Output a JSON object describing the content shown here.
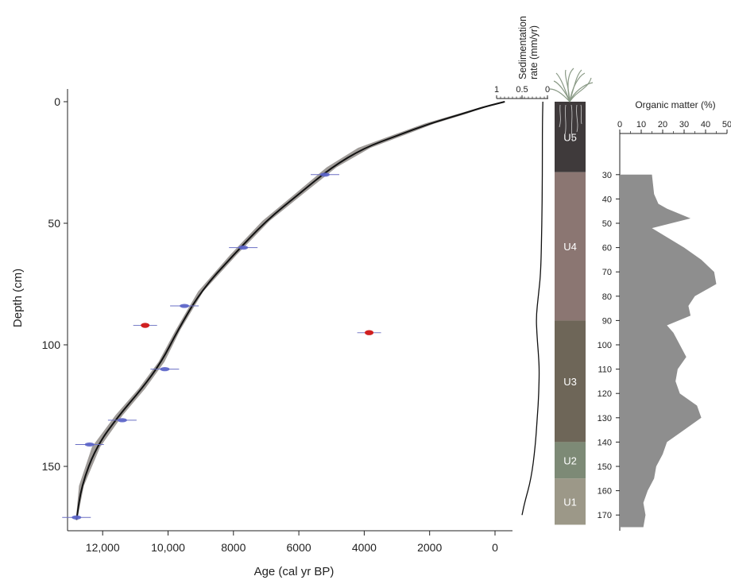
{
  "chart_data": [
    {
      "type": "line",
      "panel": "age-depth",
      "xlabel": "Age (cal yr BP)",
      "ylabel": "Depth (cm)",
      "x_ticks": [
        "12,000",
        "10,000",
        "8000",
        "6000",
        "4000",
        "2000",
        "0"
      ],
      "y_ticks": [
        "0",
        "50",
        "100",
        "150"
      ],
      "xlim": [
        13200,
        -500
      ],
      "ylim": [
        0,
        175
      ],
      "model": {
        "x": [
          -300,
          300,
          1000,
          2000,
          3000,
          4000,
          5000,
          6000,
          7000,
          8000,
          9000,
          9700,
          10200,
          10800,
          11500,
          12200,
          12650,
          12800
        ],
        "y": [
          0,
          2,
          5,
          9,
          14,
          19,
          27,
          38,
          49,
          63,
          78,
          94,
          107,
          118,
          129,
          142,
          158,
          172
        ],
        "uncertainty_width": [
          0,
          150,
          250,
          300,
          350,
          380,
          300,
          250,
          220,
          200,
          160,
          140,
          180,
          200,
          220,
          250,
          150,
          40
        ]
      },
      "dates_accepted": [
        {
          "age": 5200,
          "depth": 30
        },
        {
          "age": 7700,
          "depth": 60
        },
        {
          "age": 9500,
          "depth": 84
        },
        {
          "age": 10100,
          "depth": 110
        },
        {
          "age": 11400,
          "depth": 131
        },
        {
          "age": 12400,
          "depth": 141
        },
        {
          "age": 12800,
          "depth": 171
        }
      ],
      "dates_rejected": [
        {
          "age": 10700,
          "depth": 92
        },
        {
          "age": 3850,
          "depth": 95
        }
      ]
    },
    {
      "type": "line",
      "panel": "sedimentation-rate",
      "title": "Sedimentation rate (mm/yr)",
      "x_ticks": [
        "1",
        "0.5",
        "0"
      ],
      "xlim": [
        1,
        0
      ],
      "x": [
        0.09,
        0.1,
        0.1,
        0.11,
        0.13,
        0.18,
        0.22,
        0.21,
        0.18,
        0.16,
        0.17,
        0.2,
        0.24,
        0.32,
        0.45,
        0.5
      ],
      "y": [
        0,
        10,
        30,
        50,
        70,
        80,
        88,
        95,
        103,
        110,
        120,
        130,
        142,
        155,
        165,
        170
      ]
    },
    {
      "type": "table",
      "panel": "lithology",
      "units": [
        {
          "name": "U5",
          "top": 0,
          "bottom": 29,
          "color": "#3f3a3b"
        },
        {
          "name": "U4",
          "top": 29,
          "bottom": 90,
          "color": "#8b7672"
        },
        {
          "name": "U3",
          "top": 90,
          "bottom": 140,
          "color": "#6e6658"
        },
        {
          "name": "U2",
          "top": 140,
          "bottom": 155,
          "color": "#7d8a76"
        },
        {
          "name": "U1",
          "top": 155,
          "bottom": 174,
          "color": "#9c9888"
        }
      ]
    },
    {
      "type": "area",
      "panel": "organic-matter",
      "title": "Organic matter (%)",
      "x_ticks": [
        "0",
        "10",
        "20",
        "30",
        "40",
        "50"
      ],
      "xlim": [
        0,
        50
      ],
      "y_ticks": [
        "30",
        "40",
        "50",
        "60",
        "70",
        "80",
        "90",
        "100",
        "110",
        "120",
        "130",
        "140",
        "150",
        "160",
        "170"
      ],
      "ylim": [
        0,
        175
      ],
      "depth": [
        30,
        38,
        42,
        44,
        48,
        52,
        60,
        65,
        70,
        75,
        80,
        84,
        88,
        92,
        95,
        100,
        105,
        110,
        115,
        120,
        125,
        130,
        135,
        140,
        145,
        150,
        155,
        160,
        165,
        170,
        175
      ],
      "percent": [
        15,
        16,
        18,
        22,
        33,
        15,
        30,
        38,
        44,
        45,
        35,
        32,
        33,
        22,
        25,
        28,
        31,
        27,
        26,
        28,
        36,
        38,
        30,
        22,
        20,
        17,
        16,
        13,
        11,
        12,
        11
      ]
    }
  ]
}
